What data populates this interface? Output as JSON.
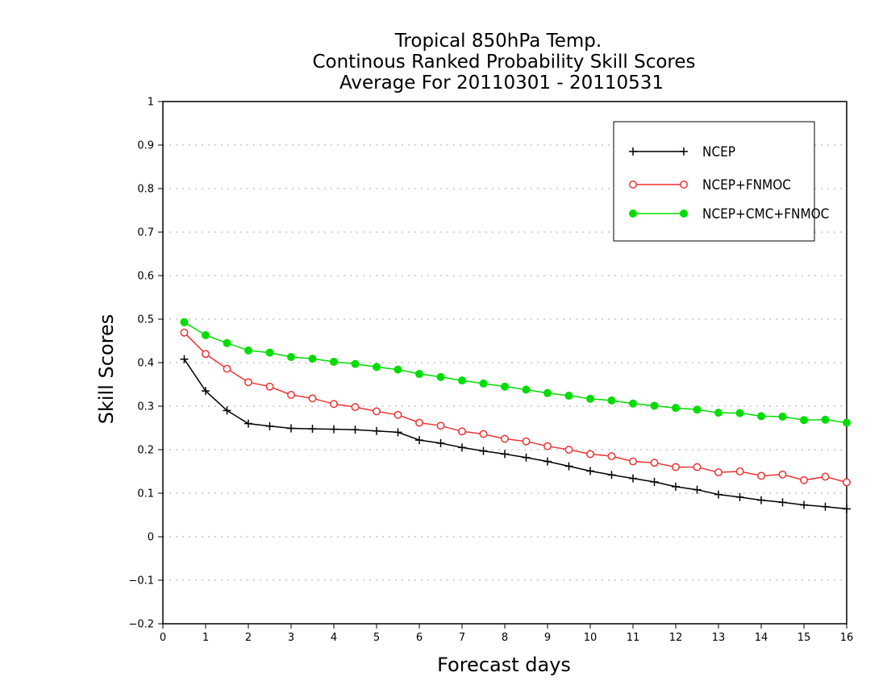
{
  "chart_data": {
    "type": "line",
    "title_lines": [
      "Tropical 850hPa Temp.",
      "Continous Ranked Probability Skill Scores",
      "Average For 20110301 - 20110531"
    ],
    "xlabel": "Forecast days",
    "ylabel": "Skill Scores",
    "xlim": [
      0,
      16
    ],
    "ylim": [
      -0.2,
      1
    ],
    "x_ticks": [
      "0",
      "1",
      "2",
      "3",
      "4",
      "5",
      "6",
      "7",
      "8",
      "9",
      "10",
      "11",
      "12",
      "13",
      "14",
      "15",
      "16"
    ],
    "y_ticks": [
      "-0.2",
      "-0.1",
      "0",
      "0.1",
      "0.2",
      "0.3",
      "0.4",
      "0.5",
      "0.6",
      "0.7",
      "0.8",
      "0.9",
      "1"
    ],
    "grid": true,
    "legend_position": "top-right",
    "x": [
      0.5,
      1,
      1.5,
      2,
      2.5,
      3,
      3.5,
      4,
      4.5,
      5,
      5.5,
      6,
      6.5,
      7,
      7.5,
      8,
      8.5,
      9,
      9.5,
      10,
      10.5,
      11,
      11.5,
      12,
      12.5,
      13,
      13.5,
      14,
      14.5,
      15,
      15.5,
      16
    ],
    "series": [
      {
        "name": "NCEP",
        "color": "#000000",
        "marker": "plus",
        "values": [
          0.408,
          0.335,
          0.29,
          0.26,
          0.254,
          0.249,
          0.248,
          0.247,
          0.246,
          0.243,
          0.24,
          0.222,
          0.215,
          0.205,
          0.197,
          0.19,
          0.182,
          0.173,
          0.162,
          0.151,
          0.142,
          0.134,
          0.126,
          0.115,
          0.108,
          0.097,
          0.091,
          0.084,
          0.079,
          0.073,
          0.069,
          0.064
        ]
      },
      {
        "name": "NCEP+FNMOC",
        "color": "#ee3333",
        "marker": "open-circle",
        "values": [
          0.469,
          0.42,
          0.386,
          0.355,
          0.345,
          0.326,
          0.318,
          0.305,
          0.298,
          0.288,
          0.28,
          0.262,
          0.255,
          0.242,
          0.236,
          0.225,
          0.219,
          0.208,
          0.2,
          0.19,
          0.185,
          0.173,
          0.17,
          0.16,
          0.16,
          0.148,
          0.15,
          0.14,
          0.143,
          0.13,
          0.138,
          0.125
        ]
      },
      {
        "name": "NCEP+CMC+FNMOC",
        "color": "#00dd00",
        "marker": "filled-circle",
        "values": [
          0.493,
          0.463,
          0.445,
          0.428,
          0.423,
          0.413,
          0.409,
          0.402,
          0.397,
          0.39,
          0.384,
          0.374,
          0.367,
          0.359,
          0.352,
          0.345,
          0.338,
          0.33,
          0.324,
          0.317,
          0.313,
          0.306,
          0.301,
          0.296,
          0.292,
          0.285,
          0.284,
          0.277,
          0.276,
          0.268,
          0.269,
          0.262
        ]
      }
    ]
  }
}
